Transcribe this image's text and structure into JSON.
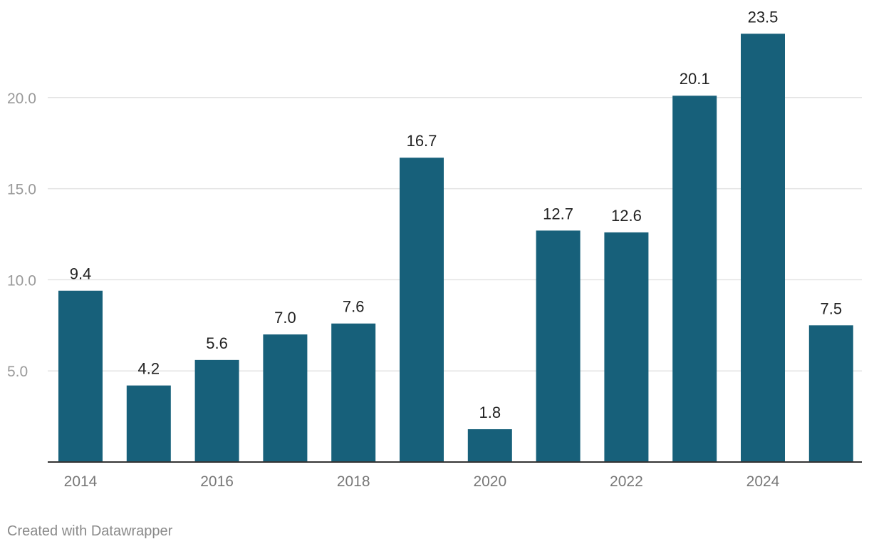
{
  "chart_data": {
    "type": "bar",
    "title": "",
    "xlabel": "",
    "ylabel": "",
    "categories": [
      "2014",
      "2015",
      "2016",
      "2017",
      "2018",
      "2019",
      "2020",
      "2021",
      "2022",
      "2023",
      "2024",
      "2025"
    ],
    "values": [
      9.4,
      4.2,
      5.6,
      7.0,
      7.6,
      16.7,
      1.8,
      12.7,
      12.6,
      20.1,
      23.5,
      7.5
    ],
    "value_labels": [
      "9.4",
      "4.2",
      "5.6",
      "7.0",
      "7.6",
      "16.7",
      "1.8",
      "12.7",
      "12.6",
      "20.1",
      "23.5",
      "7.5"
    ],
    "x_tick_labels": [
      "2014",
      "2016",
      "2018",
      "2020",
      "2022",
      "2024"
    ],
    "y_ticks": [
      5,
      10,
      15,
      20
    ],
    "y_tick_labels": [
      "5.0",
      "10.0",
      "15.0",
      "20.0"
    ],
    "ylim": [
      0,
      25
    ],
    "grid": true,
    "bar_color": "#17607a"
  },
  "footer": {
    "credit": "Created with Datawrapper"
  }
}
